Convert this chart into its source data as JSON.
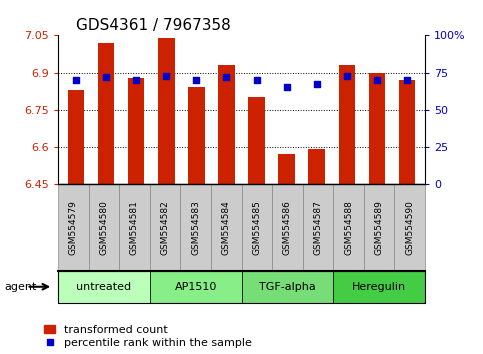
{
  "title": "GDS4361 / 7967358",
  "samples": [
    "GSM554579",
    "GSM554580",
    "GSM554581",
    "GSM554582",
    "GSM554583",
    "GSM554584",
    "GSM554585",
    "GSM554586",
    "GSM554587",
    "GSM554588",
    "GSM554589",
    "GSM554590"
  ],
  "bar_values": [
    6.83,
    7.02,
    6.88,
    7.04,
    6.84,
    6.93,
    6.8,
    6.57,
    6.59,
    6.93,
    6.9,
    6.87
  ],
  "percentile_values": [
    70,
    72,
    70,
    73,
    70,
    72,
    70,
    65,
    67,
    73,
    70,
    70
  ],
  "ymin": 6.45,
  "ymax": 7.05,
  "yticks": [
    6.45,
    6.6,
    6.75,
    6.9,
    7.05
  ],
  "ytick_labels": [
    "6.45",
    "6.6",
    "6.75",
    "6.9",
    "7.05"
  ],
  "y2min": 0,
  "y2max": 100,
  "y2ticks": [
    0,
    25,
    50,
    75,
    100
  ],
  "y2tick_labels": [
    "0",
    "25",
    "50",
    "75",
    "100%"
  ],
  "bar_color": "#cc2200",
  "dot_color": "#0000cc",
  "grid_color": "#000000",
  "tick_box_color": "#cccccc",
  "tick_box_edge_color": "#888888",
  "agents": [
    {
      "label": "untreated",
      "start": 0,
      "end": 3,
      "color": "#bbffbb"
    },
    {
      "label": "AP1510",
      "start": 3,
      "end": 6,
      "color": "#88ee88"
    },
    {
      "label": "TGF-alpha",
      "start": 6,
      "end": 9,
      "color": "#77dd77"
    },
    {
      "label": "Heregulin",
      "start": 9,
      "end": 12,
      "color": "#44cc44"
    }
  ],
  "agent_label": "agent",
  "legend_bar_label": "transformed count",
  "legend_dot_label": "percentile rank within the sample",
  "title_fontsize": 11,
  "tick_label_color_left": "#cc2200",
  "tick_label_color_right": "#0000cc"
}
